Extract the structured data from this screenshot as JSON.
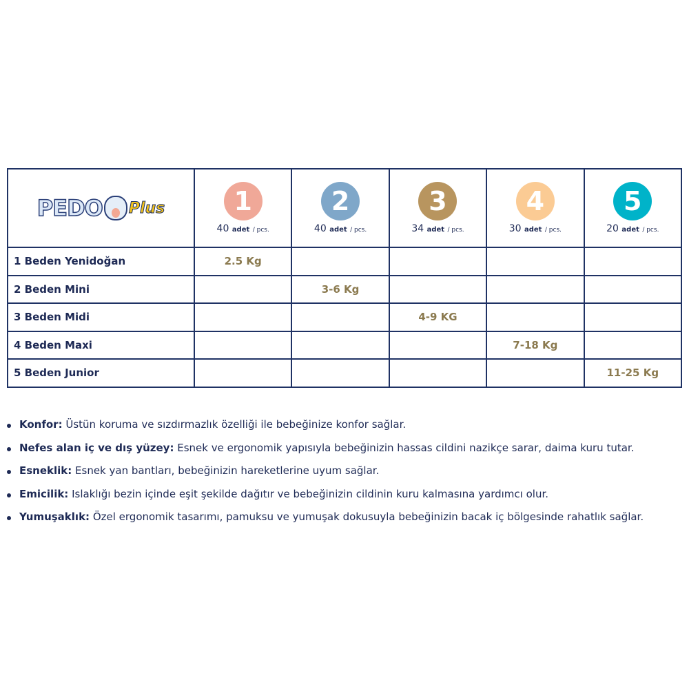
{
  "logo": {
    "text": "PEDO",
    "suffix": "Plus"
  },
  "sizes": [
    {
      "num": "1",
      "count": "40",
      "unit": "adet",
      "unit2": "/ pcs.",
      "color": "#f0a898"
    },
    {
      "num": "2",
      "count": "40",
      "unit": "adet",
      "unit2": "/ pcs.",
      "color": "#7fa7c9"
    },
    {
      "num": "3",
      "count": "34",
      "unit": "adet",
      "unit2": "/ pcs.",
      "color": "#b8955f"
    },
    {
      "num": "4",
      "count": "30",
      "unit": "adet",
      "unit2": "/ pcs.",
      "color": "#fbcb94"
    },
    {
      "num": "5",
      "count": "20",
      "unit": "adet",
      "unit2": "/ pcs.",
      "color": "#00b3c9"
    }
  ],
  "rows": [
    {
      "label": "1 Beden Yenidoğan",
      "weight": "2.5 Kg"
    },
    {
      "label": "2 Beden Mini",
      "weight": "3-6 Kg"
    },
    {
      "label": "3 Beden Midi",
      "weight": "4-9 KG"
    },
    {
      "label": "4 Beden Maxi",
      "weight": "7-18 Kg"
    },
    {
      "label": "5 Beden Junior",
      "weight": "11-25 Kg"
    }
  ],
  "features": [
    {
      "title": "Konfor:",
      "text": " Üstün koruma ve sızdırmazlık özelliği ile bebeğinize konfor sağlar."
    },
    {
      "title": "Nefes alan iç ve dış yüzey:",
      "text": " Esnek ve ergonomik yapısıyla bebeğinizin hassas cildini nazikçe sarar, daima kuru tutar."
    },
    {
      "title": "Esneklik:",
      "text": " Esnek yan bantları, bebeğinizin hareketlerine uyum sağlar."
    },
    {
      "title": "Emicilik:",
      "text": " Islaklığı bezin içinde eşit şekilde dağıtır ve bebeğinizin cildinin kuru kalmasına yardımcı olur."
    },
    {
      "title": "Yumuşaklık:",
      "text": " Özel ergonomik tasarımı, pamuksu ve yumuşak dokusuyla bebeğinizin bacak iç bölgesinde rahatlık sağlar."
    }
  ]
}
